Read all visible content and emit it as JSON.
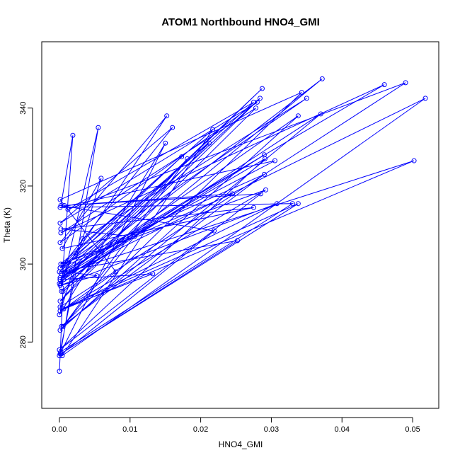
{
  "chart_data": {
    "type": "scatter",
    "title": "ATOM1 Northbound HNO4_GMI",
    "xlabel": "HNO4_GMI",
    "ylabel": "Theta (K)",
    "xlim": [
      -0.0025,
      0.0537
    ],
    "ylim": [
      263,
      357
    ],
    "xticks": [
      0.0,
      0.01,
      0.02,
      0.03,
      0.04,
      0.05
    ],
    "xtick_labels": [
      "0.00",
      "0.01",
      "0.02",
      "0.03",
      "0.04",
      "0.05"
    ],
    "yticks": [
      280,
      300,
      320,
      340
    ],
    "ytick_labels": [
      "280",
      "300",
      "320",
      "340"
    ],
    "grid": false,
    "color": "#0000ff",
    "series": [
      {
        "mode": "lines+markers",
        "x": [
          0.0,
          0.0005,
          0.0372,
          0.0001,
          0.0287,
          0.0,
          0.0033,
          0.035,
          0.0001,
          0.016,
          0.0001,
          0.028,
          0.0001,
          0.0152,
          0.0008,
          0.0305,
          0.0001,
          0.033,
          0.0002,
          0.0055,
          0.0003,
          0.0019,
          0.0002,
          0.0219,
          0.0,
          0.0025,
          0.0001,
          0.049,
          0.0012,
          0.0275,
          0.0003,
          0.0502,
          0.0001,
          0.0292,
          0.0002,
          0.0217,
          0.0004,
          0.0518,
          0.0001,
          0.029,
          0.0002,
          0.037,
          0.0005,
          0.0181,
          0.0001,
          0.0278,
          0.0002,
          0.046,
          0.0008,
          0.0053,
          0.0001,
          0.0308,
          0.0006,
          0.008,
          0.0001,
          0.0343,
          0.0003,
          0.029,
          0.0005,
          0.0173,
          0.0,
          0.0252,
          0.0002,
          0.0338,
          0.0004,
          0.0132,
          0.0001,
          0.0291,
          0.0,
          0.0285,
          0.0007,
          0.0245,
          0.0001,
          0.0212,
          0.0003,
          0.0284,
          0.0006,
          0.0338,
          0.0001,
          0.0106,
          0.0002,
          0.0275,
          0.0004,
          0.0059,
          0.0,
          0.015,
          0.0001
        ],
        "y": [
          272.5,
          293.0,
          347.5,
          296.0,
          345.0,
          295.0,
          306.5,
          342.5,
          299.0,
          335.0,
          310.5,
          341.5,
          305.5,
          338.0,
          298.5,
          326.5,
          314.5,
          315.5,
          277.5,
          335.0,
          294.0,
          333.0,
          315.0,
          308.5,
          276.5,
          299.5,
          289.0,
          346.5,
          314.0,
          341.5,
          297.5,
          326.5,
          288.0,
          319.0,
          300.0,
          334.5,
          276.5,
          342.5,
          296.5,
          328.0,
          295.0,
          338.5,
          284.0,
          327.0,
          290.5,
          340.0,
          308.0,
          346.0,
          298.0,
          297.0,
          294.5,
          315.5,
          288.5,
          298.0,
          316.5,
          344.0,
          284.0,
          323.0,
          300.0,
          327.5,
          298.0,
          306.0,
          277.0,
          315.5,
          288.5,
          297.5,
          296.0,
          327.0,
          278.0,
          318.0,
          315.0,
          318.0,
          299.0,
          331.0,
          293.0,
          342.5,
          296.0,
          338.0,
          283.0,
          307.0,
          309.0,
          314.5,
          304.0,
          322.0,
          287.0,
          331.0,
          277.0
        ]
      }
    ]
  }
}
